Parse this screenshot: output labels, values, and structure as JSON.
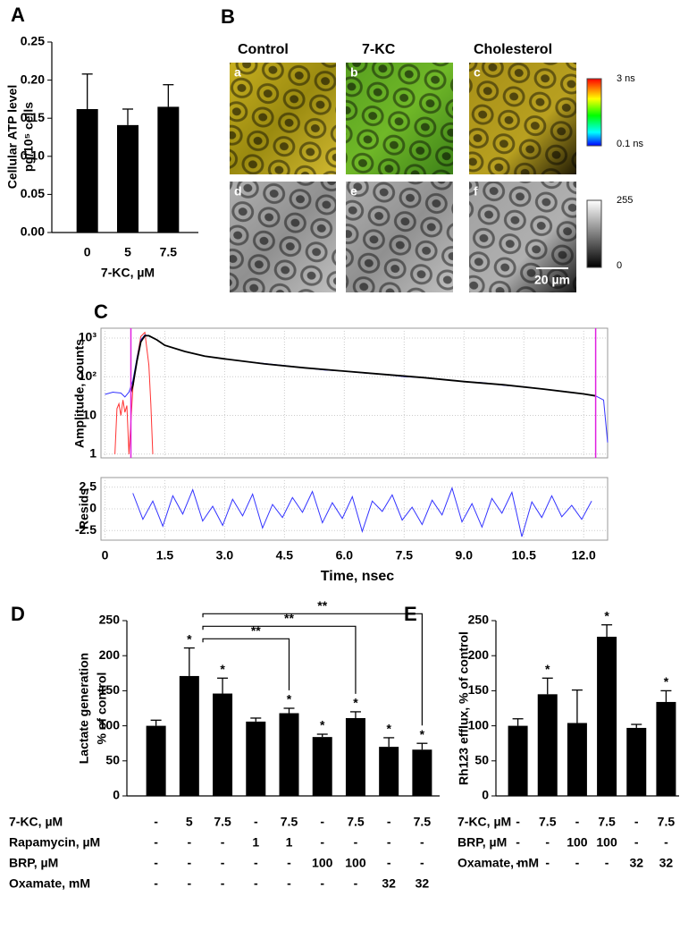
{
  "panel_b": {
    "panel_label": "B",
    "columns": [
      "Control",
      "7-KC",
      "Cholesterol"
    ],
    "tiles": [
      "a",
      "b",
      "c",
      "d",
      "e",
      "f"
    ],
    "lifetime_scale": [
      "3 ns",
      "0.1 ns"
    ],
    "intensity_scale": [
      "255",
      "0"
    ],
    "scale_bar": "20 µm"
  },
  "chart_data": [
    {
      "type": "bar",
      "panel_label": "A",
      "y_label": [
        "Cellular ATP level",
        "pg/10⁵ cells"
      ],
      "x_label": "7-KC, µM",
      "categories": [
        "0",
        "5",
        "7.5"
      ],
      "values": [
        0.162,
        0.141,
        0.165
      ],
      "errors": [
        0.046,
        0.021,
        0.029
      ],
      "color": "#000000",
      "ylim": [
        0,
        0.25
      ],
      "yticks": [
        {
          "value": 0,
          "label": "0.00"
        },
        {
          "value": 0.05,
          "label": "0.05"
        },
        {
          "value": 0.1,
          "label": "0.10"
        },
        {
          "value": 0.15,
          "label": "0.15"
        },
        {
          "value": 0.2,
          "label": "0.20"
        },
        {
          "value": 0.25,
          "label": "0.25"
        }
      ]
    },
    {
      "type": "line",
      "panel_label": "C",
      "log_y": true,
      "grid": true,
      "y_label": "Amplitude, counts",
      "xlim": [
        -0.1,
        12.6
      ],
      "xticks": [
        0,
        1.5,
        {
          "value": 3,
          "label": "3.0"
        },
        4.5,
        {
          "value": 6,
          "label": "6.0"
        },
        7.5,
        {
          "value": 9,
          "label": "9.0"
        },
        10.5,
        {
          "value": 12,
          "label": "12.0"
        }
      ],
      "ylim": [
        0.8,
        1800
      ],
      "yticks": [
        1,
        10,
        {
          "value": 100,
          "label": "10²"
        },
        {
          "value": 1000,
          "label": "10³"
        }
      ],
      "cursors": [
        0.65,
        12.3
      ],
      "cursor_color": "#e020e0",
      "series": [
        {
          "color": "#ff3333",
          "x": [
            0.25,
            0.3,
            0.35,
            0.4,
            0.45,
            0.5,
            0.55,
            0.6,
            0.7,
            0.8,
            0.9,
            1.0,
            1.1,
            1.15,
            1.2
          ],
          "values": [
            1,
            15,
            20,
            10,
            25,
            12,
            18,
            1,
            50,
            300,
            1100,
            1400,
            200,
            20,
            1
          ]
        },
        {
          "color": "#3333ff",
          "x": [
            0,
            0.2,
            0.4,
            0.5,
            0.6,
            0.7,
            0.8,
            0.9,
            1.0,
            1.1,
            1.3,
            1.5,
            2,
            2.5,
            3,
            3.5,
            4,
            4.5,
            5,
            5.5,
            6,
            6.5,
            7,
            7.5,
            8,
            8.5,
            9,
            9.5,
            10,
            10.5,
            11,
            11.5,
            12,
            12.3,
            12.5,
            12.6
          ],
          "values": [
            35,
            40,
            38,
            30,
            40,
            80,
            300,
            900,
            1200,
            1150,
            900,
            650,
            450,
            340,
            290,
            250,
            220,
            195,
            170,
            150,
            140,
            125,
            115,
            100,
            95,
            85,
            75,
            70,
            60,
            55,
            48,
            42,
            36,
            32,
            25,
            2
          ]
        },
        {
          "color": "#000000",
          "x": [
            0.65,
            0.7,
            0.8,
            0.9,
            1.0,
            1.1,
            1.3,
            1.5,
            2,
            2.5,
            3,
            4,
            5,
            6,
            7,
            8,
            9,
            10,
            11,
            12,
            12.3
          ],
          "values": [
            40,
            60,
            250,
            800,
            1150,
            1150,
            900,
            650,
            450,
            340,
            290,
            215,
            170,
            140,
            115,
            95,
            75,
            62,
            48,
            36,
            32
          ]
        }
      ]
    },
    {
      "type": "line",
      "grid": true,
      "y_label": "Resids",
      "x_label": "Time, nsec",
      "xlim": [
        -0.1,
        12.6
      ],
      "xticks": [
        0,
        1.5,
        {
          "value": 3,
          "label": "3.0"
        },
        4.5,
        {
          "value": 6,
          "label": "6.0"
        },
        7.5,
        {
          "value": 9,
          "label": "9.0"
        },
        10.5,
        {
          "value": 12,
          "label": "12.0"
        }
      ],
      "ylim": [
        -3.6,
        3.6
      ],
      "yticks": [
        2.5,
        0,
        -2.5
      ],
      "series": [
        {
          "color": "#3333ff",
          "x": [
            0.7,
            0.95,
            1.2,
            1.45,
            1.7,
            1.95,
            2.2,
            2.45,
            2.7,
            2.95,
            3.2,
            3.45,
            3.7,
            3.95,
            4.2,
            4.45,
            4.7,
            4.95,
            5.2,
            5.45,
            5.7,
            5.95,
            6.2,
            6.45,
            6.7,
            6.95,
            7.2,
            7.45,
            7.7,
            7.95,
            8.2,
            8.45,
            8.7,
            8.95,
            9.2,
            9.45,
            9.7,
            9.95,
            10.2,
            10.45,
            10.7,
            10.95,
            11.2,
            11.45,
            11.7,
            11.95,
            12.2
          ],
          "values": [
            1.8,
            -1.2,
            0.9,
            -2.0,
            1.5,
            -0.6,
            2.2,
            -1.4,
            0.3,
            -1.9,
            1.1,
            -0.8,
            1.7,
            -2.2,
            0.5,
            -1.0,
            1.3,
            -0.4,
            2.0,
            -1.6,
            0.7,
            -1.1,
            1.4,
            -2.6,
            0.9,
            -0.3,
            1.6,
            -1.3,
            0.2,
            -1.8,
            1.0,
            -0.7,
            2.4,
            -1.5,
            0.6,
            -2.1,
            1.2,
            -0.5,
            1.9,
            -3.2,
            0.8,
            -1.0,
            1.5,
            -0.9,
            0.4,
            -1.2,
            0.9
          ]
        }
      ]
    },
    {
      "type": "bar",
      "panel_label": "D",
      "y_label": [
        "Lactate generation",
        "% of control"
      ],
      "values": [
        100,
        171,
        146,
        106,
        118,
        84,
        111,
        70,
        66
      ],
      "errors": [
        8,
        40,
        22,
        5,
        7,
        4,
        9,
        13,
        9
      ],
      "color": "#000000",
      "ylim": [
        0,
        250
      ],
      "yticks": [
        0,
        50,
        100,
        150,
        200,
        250
      ],
      "stars": [
        {
          "index": 1,
          "label": "*"
        },
        {
          "index": 2,
          "label": "*"
        },
        {
          "index": 4,
          "label": "*"
        },
        {
          "index": 5,
          "label": "*"
        },
        {
          "index": 6,
          "label": "*"
        },
        {
          "index": 7,
          "label": "*"
        },
        {
          "index": 8,
          "label": "*"
        }
      ],
      "brackets": [
        {
          "from": 2,
          "to": 4,
          "label": "**"
        },
        {
          "from": 2,
          "to": 6,
          "label": "**"
        },
        {
          "from": 2,
          "to": 8,
          "label": "**"
        }
      ],
      "treatments": [
        {
          "name": "7-KC, µM",
          "values": [
            "-",
            "5",
            "7.5",
            "-",
            "7.5",
            "-",
            "7.5",
            "-",
            "7.5"
          ]
        },
        {
          "name": "Rapamycin, µM",
          "values": [
            "-",
            "-",
            "-",
            "1",
            "1",
            "-",
            "-",
            "-",
            "-"
          ]
        },
        {
          "name": "BRP, µM",
          "values": [
            "-",
            "-",
            "-",
            "-",
            "-",
            "100",
            "100",
            "-",
            "-"
          ]
        },
        {
          "name": "Oxamate, mM",
          "values": [
            "-",
            "-",
            "-",
            "-",
            "-",
            "-",
            "-",
            "32",
            "32"
          ]
        }
      ]
    },
    {
      "type": "bar",
      "panel_label": "E",
      "y_label": [
        "Rh123 efflux, % of control"
      ],
      "values": [
        100,
        145,
        104,
        227,
        97,
        134
      ],
      "errors": [
        10,
        23,
        47,
        17,
        5,
        16
      ],
      "color": "#000000",
      "ylim": [
        0,
        250
      ],
      "yticks": [
        0,
        50,
        100,
        150,
        200,
        250
      ],
      "stars": [
        {
          "index": 1,
          "label": "*"
        },
        {
          "index": 3,
          "label": "*"
        },
        {
          "index": 5,
          "label": "*"
        }
      ],
      "treatments": [
        {
          "name": "7-KC, µM",
          "values": [
            "-",
            "7.5",
            "-",
            "7.5",
            "-",
            "7.5"
          ]
        },
        {
          "name": "BRP, µM",
          "values": [
            "-",
            "-",
            "100",
            "100",
            "-",
            "-"
          ]
        },
        {
          "name": "Oxamate, mM",
          "values": [
            "-",
            "-",
            "-",
            "-",
            "32",
            "32"
          ]
        }
      ]
    }
  ]
}
